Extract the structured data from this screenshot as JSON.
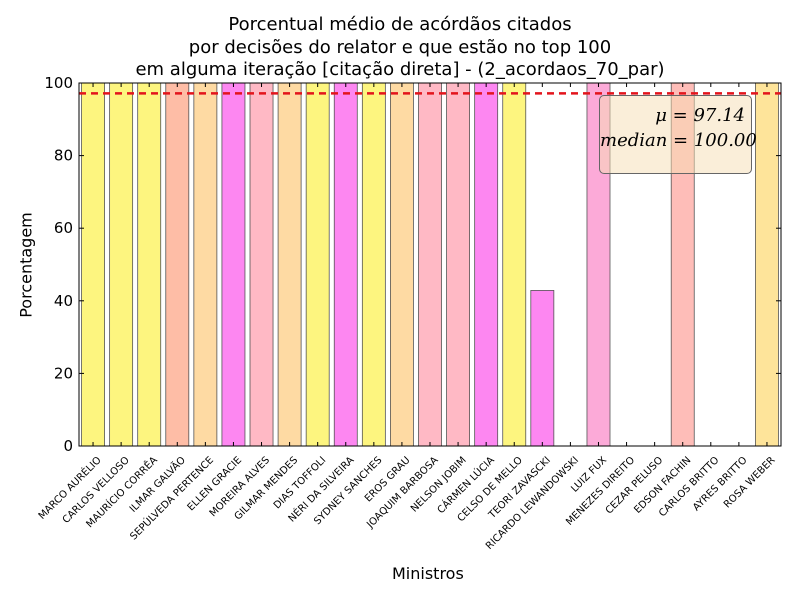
{
  "chart_data": {
    "type": "bar",
    "title_lines": [
      "Porcentual médio de acórdãos citados",
      "por decisões do relator e que estão no top 100",
      "em alguma iteração [citação direta] - (2_acordaos_70_par)"
    ],
    "xlabel": "Ministros",
    "ylabel": "Porcentagem",
    "ylim": [
      0,
      100
    ],
    "yticks": [
      "0",
      "20",
      "40",
      "60",
      "80",
      "100"
    ],
    "categories": [
      "MARCO AURÉLIO",
      "CARLOS VELLOSO",
      "MAURÍCIO CORRÊA",
      "ILMAR GALVÃO",
      "SEPÚLVEDA PERTENCE",
      "ELLEN GRACIE",
      "MOREIRA ALVES",
      "GILMAR MENDES",
      "DIAS TOFFOLI",
      "NÉRI DA SILVEIRA",
      "SYDNEY SANCHES",
      "EROS GRAU",
      "JOAQUIM BARBOSA",
      "NELSON JOBIM",
      "CÁRMEN LÚCIA",
      "CELSO DE MELLO",
      "TEORI ZAVASCKI",
      "RICARDO LEWANDOWSKI",
      "LUIZ FUX",
      "MENEZES DIREITO",
      "CEZAR PELUSO",
      "EDSON FACHIN",
      "CARLOS BRITTO",
      "AYRES BRITTO",
      "ROSA WEBER"
    ],
    "values": [
      100,
      100,
      100,
      100,
      100,
      100,
      100,
      100,
      100,
      100,
      100,
      100,
      100,
      100,
      100,
      100,
      42.86,
      0,
      100,
      0,
      0,
      100,
      0,
      0,
      100
    ],
    "colors": [
      "#fdf57f",
      "#fdf57f",
      "#fdf57f",
      "#febda6",
      "#fedaa3",
      "#fd87f1",
      "#ffb9c5",
      "#fedaa3",
      "#fdf57f",
      "#fd87f1",
      "#fdf57f",
      "#fedaa3",
      "#ffb9c5",
      "#ffb9c5",
      "#fd87f1",
      "#fdf57f",
      "#fd87f1",
      "#ffffff",
      "#fcaad8",
      "#ffffff",
      "#ffffff",
      "#febdb8",
      "#ffffff",
      "#ffffff",
      "#fee49a"
    ],
    "mean": 97.14,
    "mean_line_color": "#e3141c",
    "stats": {
      "mu": "μ = 97.14",
      "median": "median = 100.00"
    },
    "grid": false,
    "legend": "none"
  }
}
